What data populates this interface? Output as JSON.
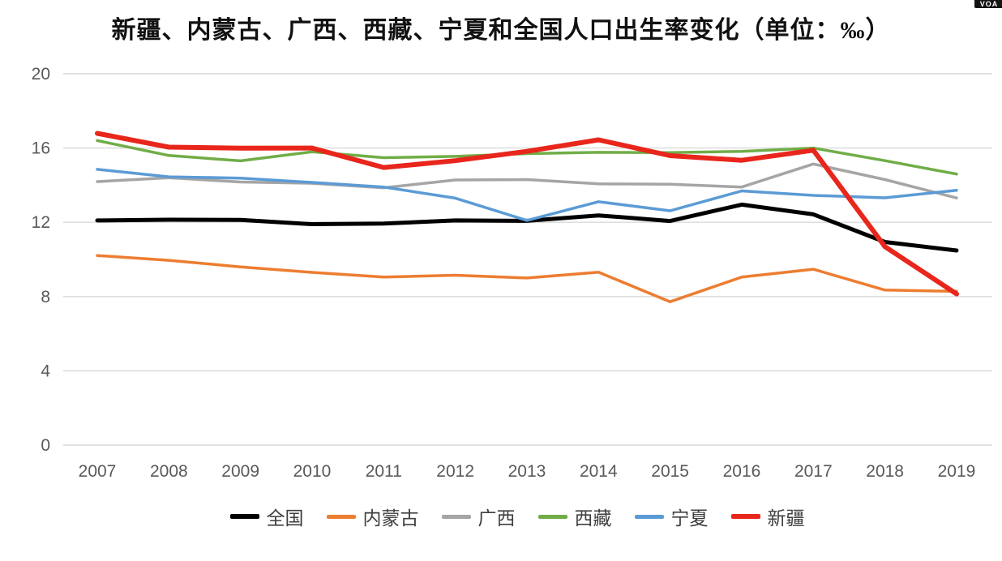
{
  "title": "新疆、内蒙古、广西、西藏、宁夏和全国人口出生率变化（单位：‰）",
  "badge": {
    "text": "VOA"
  },
  "chart_data": {
    "type": "line",
    "title": "新疆、内蒙古、广西、西藏、宁夏和全国人口出生率变化",
    "unit": "‰",
    "categories": [
      "2007",
      "2008",
      "2009",
      "2010",
      "2011",
      "2012",
      "2013",
      "2014",
      "2015",
      "2016",
      "2017",
      "2018",
      "2019"
    ],
    "xlabel": "",
    "ylabel": "",
    "ylim": [
      0,
      20
    ],
    "y_ticks": [
      0,
      4,
      8,
      12,
      16,
      20
    ],
    "grid": true,
    "legend_position": "bottom",
    "series": [
      {
        "name": "全国",
        "color": "#000000",
        "line_width": 5,
        "values": [
          12.1,
          12.14,
          12.13,
          11.9,
          11.93,
          12.1,
          12.08,
          12.37,
          12.07,
          12.95,
          12.43,
          10.94,
          10.48
        ]
      },
      {
        "name": "内蒙古",
        "color": "#ED7D31",
        "line_width": 3.5,
        "values": [
          10.21,
          9.95,
          9.6,
          9.3,
          9.05,
          9.15,
          9.0,
          9.31,
          7.72,
          9.05,
          9.47,
          8.35,
          8.28
        ]
      },
      {
        "name": "广西",
        "color": "#A5A5A5",
        "line_width": 3.5,
        "values": [
          14.19,
          14.4,
          14.17,
          14.1,
          13.86,
          14.28,
          14.3,
          14.07,
          14.05,
          13.9,
          15.14,
          14.3,
          13.31
        ]
      },
      {
        "name": "西藏",
        "color": "#70AD47",
        "line_width": 3.5,
        "values": [
          16.4,
          15.6,
          15.31,
          15.8,
          15.48,
          15.55,
          15.7,
          15.77,
          15.75,
          15.82,
          16.0,
          15.32,
          14.6
        ]
      },
      {
        "name": "宁夏",
        "color": "#5B9BD5",
        "line_width": 3.5,
        "values": [
          14.85,
          14.45,
          14.38,
          14.15,
          13.9,
          13.3,
          12.1,
          13.11,
          12.62,
          13.69,
          13.45,
          13.32,
          13.72
        ]
      },
      {
        "name": "新疆",
        "color": "#E8261C",
        "line_width": 6,
        "values": [
          16.79,
          16.05,
          15.99,
          16.0,
          14.95,
          15.32,
          15.82,
          16.44,
          15.59,
          15.34,
          15.88,
          10.69,
          8.14
        ]
      }
    ],
    "axis_text_color": "#595959",
    "gridline_color": "#D9D9D9"
  }
}
